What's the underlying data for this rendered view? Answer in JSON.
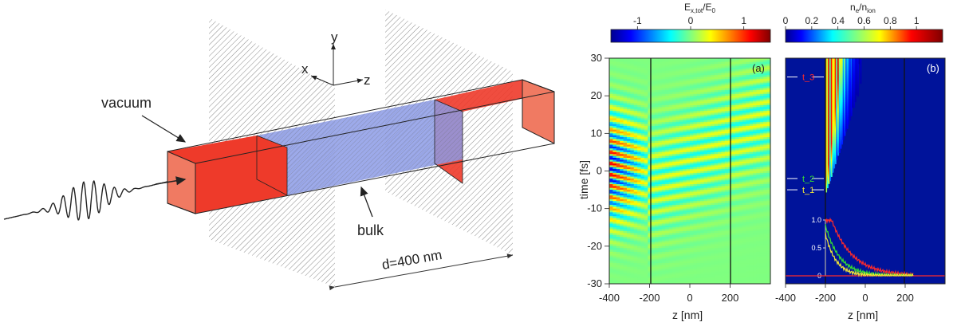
{
  "schematic": {
    "axes": {
      "y": "y",
      "x": "x",
      "z": "z"
    },
    "label_vacuum": "vacuum",
    "label_bulk": "bulk",
    "label_d": "d=400 nm",
    "colors": {
      "vacuum": "#ee3a2a",
      "bulk": "#8c9be6",
      "hatch": "#555555",
      "pulse": "#222222"
    }
  },
  "colorbar_a": {
    "title": "E_{x,tot}/E_0",
    "ticks": [
      {
        "v": -1,
        "label": "-1"
      },
      {
        "v": 0,
        "label": "0"
      },
      {
        "v": 1,
        "label": "1"
      }
    ],
    "range": [
      -1.5,
      1.5
    ],
    "colormap": "jet"
  },
  "colorbar_b": {
    "title": "n_e/n_ion",
    "ticks": [
      {
        "v": 0,
        "label": "0"
      },
      {
        "v": 0.2,
        "label": "0.2"
      },
      {
        "v": 0.4,
        "label": "0.4"
      },
      {
        "v": 0.6,
        "label": "0.6"
      },
      {
        "v": 0.8,
        "label": "0.8"
      },
      {
        "v": 1,
        "label": "1"
      }
    ],
    "range": [
      0,
      1.2
    ],
    "colormap": "jet"
  },
  "panel_a": {
    "tag": "(a)",
    "xlabel": "z [nm]",
    "ylabel": "time [fs]",
    "xticks": [
      "-400",
      "-200",
      "0",
      "200"
    ],
    "yticks": [
      "30",
      "20",
      "10",
      "0",
      "-10",
      "-20",
      "-30"
    ]
  },
  "panel_b": {
    "tag": "(b)",
    "xlabel": "z [nm]",
    "xticks": [
      "-400",
      "-200",
      "0",
      "200"
    ],
    "time_markers": [
      {
        "label": "t_3",
        "color": "#ff2a2a",
        "t": 25
      },
      {
        "label": "t_2",
        "color": "#33dd33",
        "t": -2
      },
      {
        "label": "t_1",
        "color": "#f2e636",
        "t": -5
      }
    ],
    "inset_ticks": [
      "1.0",
      "0.5",
      "0"
    ]
  },
  "chart_data": {
    "type": "heatmap",
    "x_range_nm": [
      -400,
      400
    ],
    "y_range_fs": [
      -30,
      30
    ],
    "bulk_boundaries_nm": [
      -200,
      200
    ]
  }
}
